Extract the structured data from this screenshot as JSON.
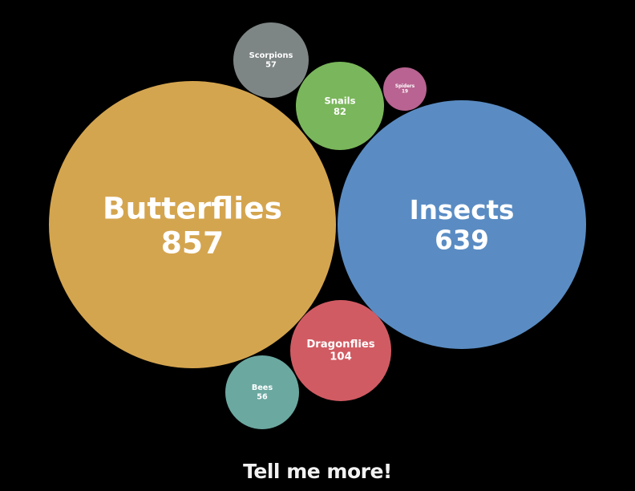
{
  "chart_data": {
    "type": "bubble",
    "series": [
      {
        "name": "Butterflies",
        "value": 857,
        "color": "#d4a54f"
      },
      {
        "name": "Insects",
        "value": 639,
        "color": "#5a8cc3"
      },
      {
        "name": "Dragonflies",
        "value": 104,
        "color": "#d15b63"
      },
      {
        "name": "Snails",
        "value": 82,
        "color": "#7ab65b"
      },
      {
        "name": "Scorpions",
        "value": 57,
        "color": "#7e8685"
      },
      {
        "name": "Bees",
        "value": 56,
        "color": "#6ba8a0"
      },
      {
        "name": "Spiders",
        "value": 19,
        "color": "#b86391"
      }
    ]
  },
  "cta": {
    "label": "Tell me more!"
  }
}
